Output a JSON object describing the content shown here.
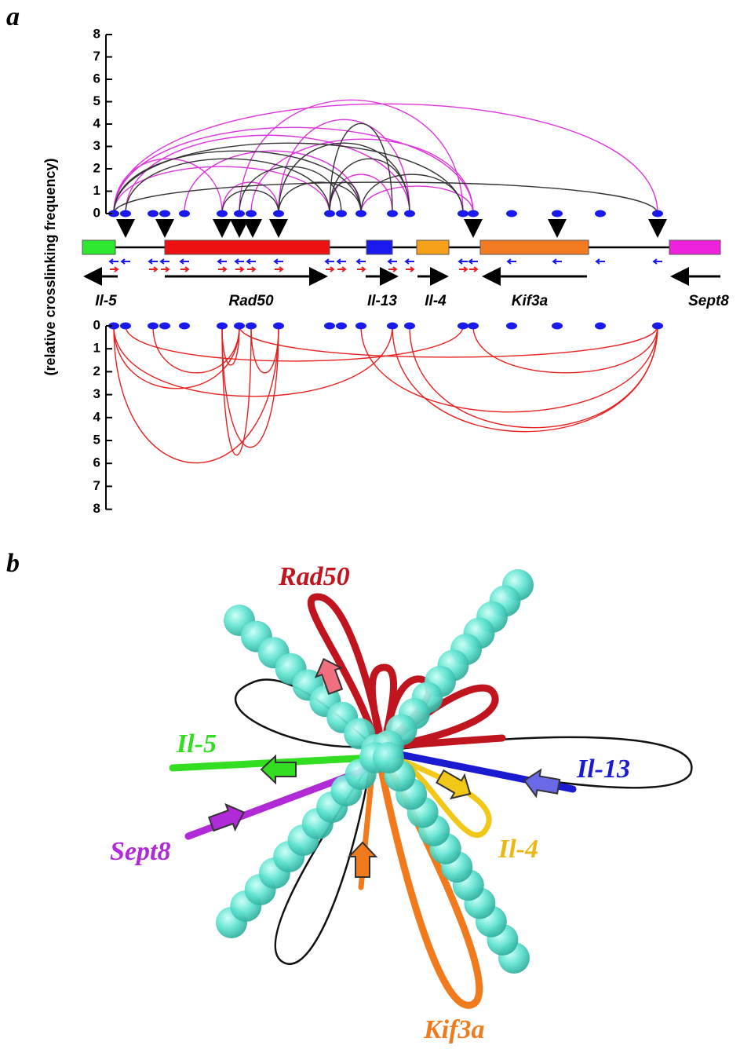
{
  "panel_a": {
    "label": "a",
    "y_axis_label": "(relative crosslinking frequency)",
    "top_ticks": [
      0,
      1,
      2,
      3,
      4,
      5,
      6,
      7,
      8
    ],
    "bottom_ticks": [
      0,
      1,
      2,
      3,
      4,
      5,
      6,
      7,
      8
    ],
    "genes": [
      "Il-5",
      "Rad50",
      "Il-13",
      "Il-4",
      "Kif3a",
      "Sept8"
    ]
  },
  "panel_b": {
    "label": "b",
    "genes": [
      "Rad50",
      "Il-5",
      "Il-13",
      "Sept8",
      "Il-4",
      "Kif3a"
    ]
  }
}
